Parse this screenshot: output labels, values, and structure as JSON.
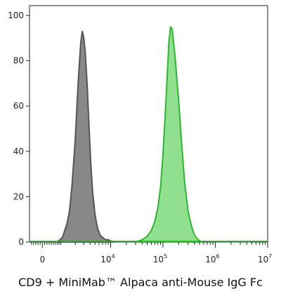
{
  "chart_data": {
    "type": "area",
    "xlabel": "CD9 + MiniMab™ Alpaca anti-Mouse IgG Fc",
    "ylabel": "",
    "x_scale": "biexponential",
    "ylim": [
      0,
      100
    ],
    "y_ticks": [
      "0",
      "20",
      "40",
      "60",
      "80",
      "100"
    ],
    "x_ticks": [
      {
        "base": "0",
        "exp": ""
      },
      {
        "base": "10",
        "exp": "4"
      },
      {
        "base": "10",
        "exp": "5"
      },
      {
        "base": "10",
        "exp": "6"
      },
      {
        "base": "10",
        "exp": "7"
      }
    ],
    "grid": false,
    "series": [
      {
        "color": "#888888",
        "stroke": "#555555",
        "x": [
          700,
          1000,
          1300,
          1500,
          1700,
          2000,
          2300,
          2600,
          2800,
          3000,
          3200,
          3500,
          3800,
          4100,
          4500,
          5000,
          5600,
          6300,
          7000,
          8000,
          9000,
          10000,
          11500
        ],
        "values": [
          0,
          2,
          8,
          14,
          25,
          45,
          70,
          88,
          93,
          90,
          84,
          70,
          52,
          36,
          22,
          12,
          6,
          3,
          2,
          1,
          1,
          0.5,
          0
        ]
      },
      {
        "color": "#90e090",
        "stroke": "#2fb52f",
        "x": [
          30000,
          40000,
          50000,
          60000,
          70000,
          80000,
          90000,
          100000,
          110000,
          120000,
          130000,
          140000,
          150000,
          170000,
          200000,
          230000,
          260000,
          300000,
          350000,
          400000,
          470000,
          550000
        ],
        "values": [
          0,
          1,
          2.5,
          5,
          9,
          15,
          24,
          38,
          55,
          72,
          88,
          95,
          94,
          82,
          62,
          42,
          26,
          14,
          7,
          3,
          1,
          0
        ]
      }
    ]
  }
}
